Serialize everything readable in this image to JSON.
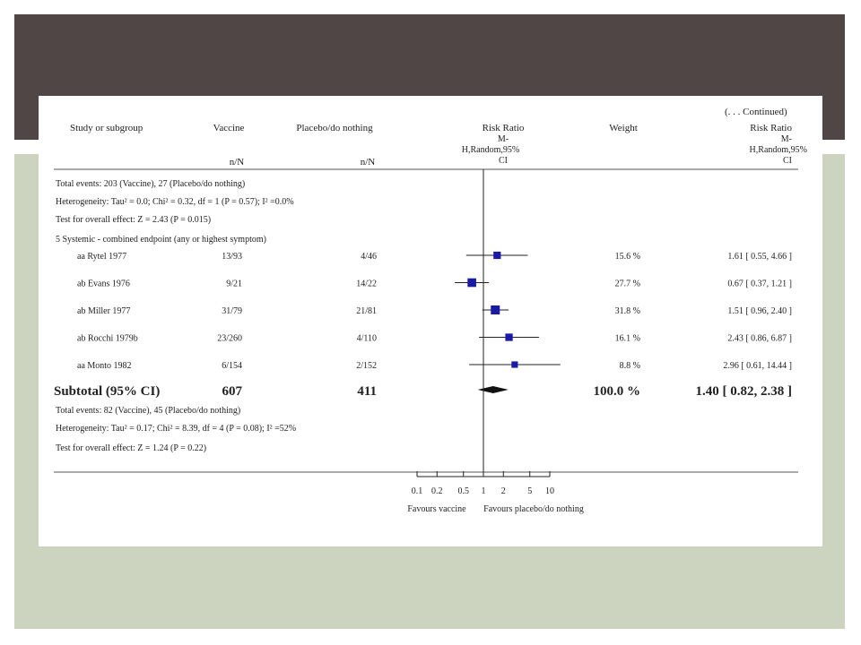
{
  "colors": {
    "band_top": "#4f4645",
    "band_bottom": "#ccd3bf",
    "marker": "#1a1aa6"
  },
  "headers": {
    "study": "Study or subgroup",
    "vaccine": "Vaccine",
    "placebo": "Placebo/do nothing",
    "vaccine_nN": "n/N",
    "placebo_nN": "n/N",
    "rr_title": "Risk Ratio",
    "rr_method_1": "M-",
    "rr_method_2": "H,Random,95%",
    "rr_method_3": "CI",
    "weight": "Weight",
    "continued": "(. . . Continued)",
    "rr2_title": "Risk Ratio",
    "rr2_method_1": "M-",
    "rr2_method_2": "H,Random,95%",
    "rr2_method_3": "CI"
  },
  "top_notes": {
    "events": "Total events: 203 (Vaccine), 27 (Placebo/do nothing)",
    "heterogeneity": "Heterogeneity: Tau² = 0.0; Chi² = 0.32, df = 1 (P = 0.57); I² =0.0%",
    "overall": "Test for overall effect: Z = 2.43 (P = 0.015)"
  },
  "section_title": "5 Systemic - combined endpoint (any or highest symptom)",
  "subtotal": {
    "label": "Subtotal (95% CI)",
    "vaccine_total": "607",
    "placebo_total": "411",
    "weight": "100.0 %",
    "rr_text": "1.40 [ 0.82, 2.38 ]"
  },
  "bottom_notes": {
    "events": "Total events: 82 (Vaccine), 45 (Placebo/do nothing)",
    "heterogeneity": "Heterogeneity: Tau² = 0.17; Chi² = 8.39, df = 4 (P = 0.08); I² =52%",
    "overall": "Test for overall effect: Z = 1.24 (P = 0.22)"
  },
  "axis": {
    "favours_left": "Favours vaccine",
    "favours_right": "Favours placebo/do nothing"
  },
  "chart_data": {
    "type": "forest",
    "x_scale": "log",
    "xlim": [
      0.1,
      10
    ],
    "ticks": [
      0.1,
      0.2,
      0.5,
      1,
      2,
      5,
      10
    ],
    "tick_labels": [
      "0.1",
      "0.2",
      "0.5",
      "1",
      "2",
      "5",
      "10"
    ],
    "reference_line": 1,
    "studies": [
      {
        "name": "aa Rytel 1977",
        "vaccine": "13/93",
        "placebo": "4/46",
        "weight_label": "15.6 %",
        "weight": 15.6,
        "rr": 1.61,
        "lo": 0.55,
        "hi": 4.66,
        "rr_text": "1.61 [ 0.55, 4.66 ]"
      },
      {
        "name": "ab Evans 1976",
        "vaccine": "9/21",
        "placebo": "14/22",
        "weight_label": "27.7 %",
        "weight": 27.7,
        "rr": 0.67,
        "lo": 0.37,
        "hi": 1.21,
        "rr_text": "0.67 [ 0.37, 1.21 ]"
      },
      {
        "name": "ab Miller 1977",
        "vaccine": "31/79",
        "placebo": "21/81",
        "weight_label": "31.8 %",
        "weight": 31.8,
        "rr": 1.51,
        "lo": 0.96,
        "hi": 2.4,
        "rr_text": "1.51 [ 0.96, 2.40 ]"
      },
      {
        "name": "ab Rocchi 1979b",
        "vaccine": "23/260",
        "placebo": "4/110",
        "weight_label": "16.1 %",
        "weight": 16.1,
        "rr": 2.43,
        "lo": 0.86,
        "hi": 6.87,
        "rr_text": "2.43 [ 0.86, 6.87 ]"
      },
      {
        "name": "aa Monto 1982",
        "vaccine": "6/154",
        "placebo": "2/152",
        "weight_label": "8.8 %",
        "weight": 8.8,
        "rr": 2.96,
        "lo": 0.61,
        "hi": 14.44,
        "rr_text": "2.96 [ 0.61, 14.44 ]"
      }
    ],
    "pooled": {
      "rr": 1.4,
      "lo": 0.82,
      "hi": 2.38
    }
  }
}
